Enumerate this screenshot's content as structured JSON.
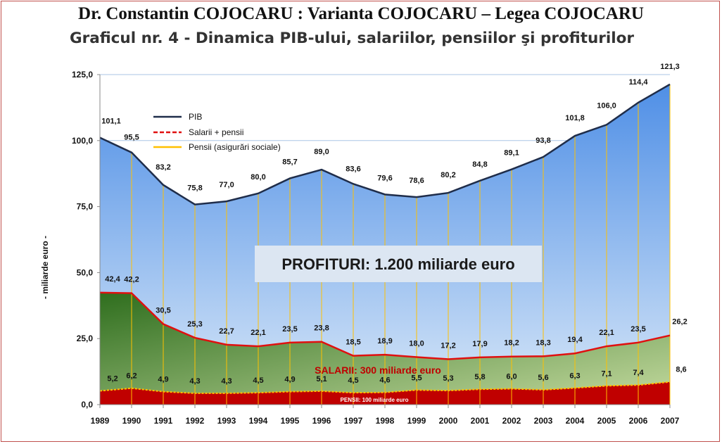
{
  "header": {
    "title": "Dr. Constantin COJOCARU : Varianta COJOCARU – Legea COJOCARU"
  },
  "chart_data": {
    "type": "area",
    "title": "Graficul nr. 4 - Dinamica PIB-ului, salariilor, pensiilor şi profiturilor",
    "ylabel": "- miliarde euro -",
    "xlabel": "",
    "ylim": [
      0,
      125
    ],
    "yticks": [
      "0,0",
      "25,0",
      "50,0",
      "75,0",
      "100,0",
      "125,0"
    ],
    "ytick_values": [
      0,
      25,
      50,
      75,
      100,
      125
    ],
    "categories": [
      "1989",
      "1990",
      "1991",
      "1992",
      "1993",
      "1994",
      "1995",
      "1996",
      "1997",
      "1998",
      "1999",
      "2000",
      "2001",
      "2002",
      "2003",
      "2004",
      "2005",
      "2006",
      "2007"
    ],
    "series": [
      {
        "name": "PIB",
        "values": [
          101.1,
          95.5,
          83.2,
          75.8,
          77.0,
          80.0,
          85.7,
          89.0,
          83.6,
          79.6,
          78.6,
          80.2,
          84.8,
          89.1,
          93.8,
          101.8,
          106.0,
          114.4,
          121.3
        ],
        "labels": [
          "101,1",
          "95,5",
          "83,2",
          "75,8",
          "77,0",
          "80,0",
          "85,7",
          "89,0",
          "83,6",
          "79,6",
          "78,6",
          "80,2",
          "84,8",
          "89,1",
          "93,8",
          "101,8",
          "106,0",
          "114,4",
          "121,3"
        ]
      },
      {
        "name": "Salarii + pensii",
        "values": [
          42.4,
          42.2,
          30.5,
          25.3,
          22.7,
          22.1,
          23.5,
          23.8,
          18.5,
          18.9,
          18.0,
          17.2,
          17.9,
          18.2,
          18.3,
          19.4,
          22.1,
          23.5,
          26.2
        ],
        "labels": [
          "42,4",
          "42,2",
          "30,5",
          "25,3",
          "22,7",
          "22,1",
          "23,5",
          "23,8",
          "18,5",
          "18,9",
          "18,0",
          "17,2",
          "17,9",
          "18,2",
          "18,3",
          "19,4",
          "22,1",
          "23,5",
          "26,2"
        ]
      },
      {
        "name": "Pensii (asigurări sociale)",
        "values": [
          5.2,
          6.2,
          4.9,
          4.3,
          4.3,
          4.5,
          4.9,
          5.1,
          4.5,
          4.6,
          5.5,
          5.3,
          5.8,
          6.0,
          5.6,
          6.3,
          7.1,
          7.4,
          8.6
        ],
        "labels": [
          "5,2",
          "6,2",
          "4,9",
          "4,3",
          "4,3",
          "4,5",
          "4,9",
          "5,1",
          "4,5",
          "4,6",
          "5,5",
          "5,3",
          "5,8",
          "6,0",
          "5,6",
          "6,3",
          "7,1",
          "7,4",
          "8,6"
        ]
      }
    ],
    "annotations": {
      "profit": "PROFITURI: 1.200 miliarde euro",
      "salaries": "SALARII: 300 miliarde euro",
      "pensions": "PENSII: 100 miliarde euro"
    },
    "legend_position": "top-left",
    "grid": true
  },
  "colors": {
    "pib_line": "#1f2d4a",
    "pib_fill_top": "#4f8fe6",
    "pib_fill_bottom": "#d9e8f8",
    "salary_line": "#e01010",
    "salary_fill_top": "#2f6e1e",
    "salary_fill_bottom": "#c5dba0",
    "pension_line": "#ffc000",
    "pension_fill": "#c00000",
    "annotation_salary": "#c00000",
    "vertical_lines": "#ffc000"
  }
}
